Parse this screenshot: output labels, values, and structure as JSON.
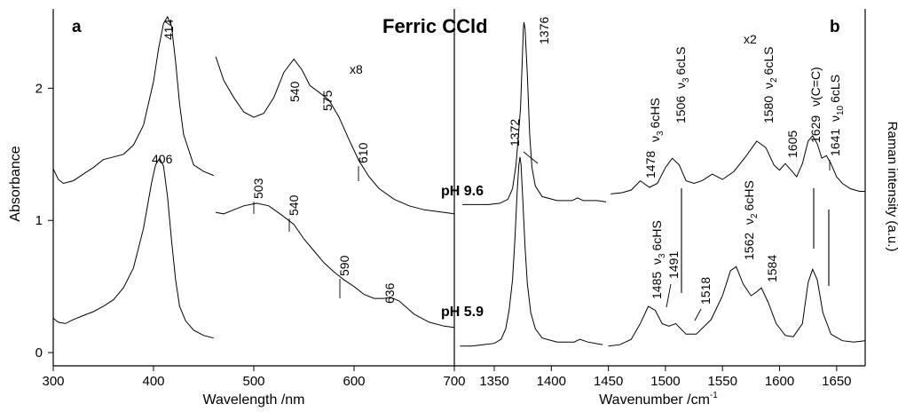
{
  "figure_title": "Ferric CCld",
  "chart_data": [
    {
      "panel": "a",
      "type": "line",
      "xlabel": "Wavelength /nm",
      "ylabel": "Absorbance",
      "xlim": [
        300,
        700
      ],
      "ylim": [
        -0.1,
        2.6
      ],
      "xticks": [
        300,
        400,
        500,
        600,
        700
      ],
      "yticks": [
        0,
        1,
        2
      ],
      "zoom_label": "x8",
      "series": [
        {
          "label": "pH 9.6",
          "points": [
            [
              300,
              1.39
            ],
            [
              305,
              1.31
            ],
            [
              310,
              1.28
            ],
            [
              320,
              1.3
            ],
            [
              330,
              1.35
            ],
            [
              340,
              1.4
            ],
            [
              350,
              1.46
            ],
            [
              360,
              1.48
            ],
            [
              370,
              1.5
            ],
            [
              380,
              1.57
            ],
            [
              390,
              1.72
            ],
            [
              400,
              2.05
            ],
            [
              405,
              2.3
            ],
            [
              410,
              2.49
            ],
            [
              414,
              2.54
            ],
            [
              418,
              2.47
            ],
            [
              422,
              2.2
            ],
            [
              426,
              1.88
            ],
            [
              430,
              1.65
            ],
            [
              440,
              1.42
            ],
            [
              450,
              1.37
            ],
            [
              460,
              1.34
            ]
          ],
          "zoom_points": [
            [
              462,
              2.24
            ],
            [
              470,
              2.06
            ],
            [
              480,
              1.93
            ],
            [
              490,
              1.82
            ],
            [
              500,
              1.78
            ],
            [
              510,
              1.81
            ],
            [
              520,
              1.93
            ],
            [
              530,
              2.12
            ],
            [
              540,
              2.22
            ],
            [
              548,
              2.14
            ],
            [
              556,
              2.02
            ],
            [
              565,
              1.97
            ],
            [
              575,
              1.91
            ],
            [
              585,
              1.78
            ],
            [
              595,
              1.61
            ],
            [
              605,
              1.45
            ],
            [
              615,
              1.33
            ],
            [
              625,
              1.24
            ],
            [
              640,
              1.16
            ],
            [
              655,
              1.11
            ],
            [
              670,
              1.08
            ],
            [
              690,
              1.06
            ],
            [
              700,
              1.05
            ]
          ],
          "peaks": [
            "414",
            "540",
            "575",
            "610"
          ]
        },
        {
          "label": "pH 5.9",
          "points": [
            [
              300,
              0.26
            ],
            [
              305,
              0.23
            ],
            [
              312,
              0.22
            ],
            [
              320,
              0.25
            ],
            [
              330,
              0.28
            ],
            [
              340,
              0.31
            ],
            [
              350,
              0.35
            ],
            [
              360,
              0.4
            ],
            [
              370,
              0.49
            ],
            [
              380,
              0.64
            ],
            [
              390,
              0.94
            ],
            [
              398,
              1.28
            ],
            [
              402,
              1.42
            ],
            [
              406,
              1.47
            ],
            [
              410,
              1.41
            ],
            [
              414,
              1.18
            ],
            [
              418,
              0.85
            ],
            [
              422,
              0.55
            ],
            [
              426,
              0.35
            ],
            [
              432,
              0.24
            ],
            [
              440,
              0.17
            ],
            [
              450,
              0.13
            ],
            [
              460,
              0.11
            ]
          ],
          "zoom_points": [
            [
              462,
              1.06
            ],
            [
              470,
              1.05
            ],
            [
              480,
              1.08
            ],
            [
              490,
              1.11
            ],
            [
              503,
              1.13
            ],
            [
              515,
              1.11
            ],
            [
              528,
              1.04
            ],
            [
              540,
              0.97
            ],
            [
              550,
              0.86
            ],
            [
              560,
              0.77
            ],
            [
              570,
              0.68
            ],
            [
              580,
              0.61
            ],
            [
              590,
              0.55
            ],
            [
              600,
              0.5
            ],
            [
              610,
              0.44
            ],
            [
              620,
              0.41
            ],
            [
              630,
              0.41
            ],
            [
              636,
              0.42
            ],
            [
              645,
              0.39
            ],
            [
              660,
              0.29
            ],
            [
              675,
              0.23
            ],
            [
              690,
              0.2
            ],
            [
              700,
              0.19
            ]
          ],
          "peaks": [
            "406",
            "503",
            "540",
            "590",
            "636"
          ]
        }
      ]
    },
    {
      "panel": "b",
      "type": "line",
      "xlabel": "Wavenumber /cm",
      "xlabel_superscript": "-1",
      "ylabel": "Raman intensity (a.u.)",
      "xlim": [
        1315,
        1675
      ],
      "ylim": [
        -0.1,
        2.6
      ],
      "xticks": [
        1350,
        1400,
        1450,
        1500,
        1550,
        1600,
        1650
      ],
      "zoom_label": "x2",
      "series": [
        {
          "label": "pH 9.6",
          "points": [
            [
              1322,
              1.12
            ],
            [
              1335,
              1.12
            ],
            [
              1345,
              1.12
            ],
            [
              1355,
              1.13
            ],
            [
              1362,
              1.16
            ],
            [
              1366,
              1.24
            ],
            [
              1369,
              1.42
            ],
            [
              1371,
              1.62
            ],
            [
              1373,
              1.85
            ],
            [
              1374.5,
              2.2
            ],
            [
              1375.5,
              2.45
            ],
            [
              1376,
              2.5
            ],
            [
              1377,
              2.45
            ],
            [
              1379,
              2.1
            ],
            [
              1381,
              1.65
            ],
            [
              1383,
              1.4
            ],
            [
              1386,
              1.26
            ],
            [
              1392,
              1.18
            ],
            [
              1405,
              1.15
            ],
            [
              1418,
              1.15
            ],
            [
              1423,
              1.17
            ],
            [
              1428,
              1.15
            ],
            [
              1440,
              1.15
            ],
            [
              1448,
              1.14
            ]
          ],
          "zoom_points": [
            [
              1452,
              1.2
            ],
            [
              1462,
              1.21
            ],
            [
              1470,
              1.23
            ],
            [
              1478,
              1.3
            ],
            [
              1486,
              1.25
            ],
            [
              1493,
              1.28
            ],
            [
              1500,
              1.4
            ],
            [
              1506,
              1.47
            ],
            [
              1512,
              1.42
            ],
            [
              1518,
              1.3
            ],
            [
              1525,
              1.28
            ],
            [
              1532,
              1.3
            ],
            [
              1541,
              1.35
            ],
            [
              1550,
              1.31
            ],
            [
              1560,
              1.37
            ],
            [
              1570,
              1.48
            ],
            [
              1580,
              1.6
            ],
            [
              1588,
              1.55
            ],
            [
              1595,
              1.42
            ],
            [
              1600,
              1.38
            ],
            [
              1605,
              1.43
            ],
            [
              1610,
              1.38
            ],
            [
              1615,
              1.33
            ],
            [
              1620,
              1.43
            ],
            [
              1625,
              1.6
            ],
            [
              1629,
              1.64
            ],
            [
              1633,
              1.58
            ],
            [
              1637,
              1.47
            ],
            [
              1641,
              1.49
            ],
            [
              1645,
              1.43
            ],
            [
              1650,
              1.33
            ],
            [
              1655,
              1.28
            ],
            [
              1662,
              1.24
            ],
            [
              1670,
              1.22
            ],
            [
              1675,
              1.22
            ]
          ],
          "peaks": [
            "1376",
            "1478",
            "1506",
            "1580",
            "1605",
            "1629",
            "1641"
          ]
        },
        {
          "label": "pH 5.9",
          "points": [
            [
              1320,
              0.05
            ],
            [
              1330,
              0.05
            ],
            [
              1340,
              0.06
            ],
            [
              1350,
              0.07
            ],
            [
              1356,
              0.1
            ],
            [
              1360,
              0.18
            ],
            [
              1363,
              0.32
            ],
            [
              1366,
              0.55
            ],
            [
              1368,
              0.85
            ],
            [
              1370,
              1.2
            ],
            [
              1371.5,
              1.42
            ],
            [
              1372.5,
              1.48
            ],
            [
              1373.5,
              1.42
            ],
            [
              1375,
              1.15
            ],
            [
              1377,
              0.8
            ],
            [
              1379,
              0.52
            ],
            [
              1382,
              0.3
            ],
            [
              1386,
              0.18
            ],
            [
              1392,
              0.11
            ],
            [
              1405,
              0.08
            ],
            [
              1420,
              0.08
            ],
            [
              1425,
              0.1
            ],
            [
              1432,
              0.08
            ],
            [
              1445,
              0.06
            ]
          ],
          "zoom_points": [
            [
              1450,
              0.05
            ],
            [
              1460,
              0.06
            ],
            [
              1470,
              0.1
            ],
            [
              1478,
              0.22
            ],
            [
              1485,
              0.35
            ],
            [
              1491,
              0.32
            ],
            [
              1497,
              0.22
            ],
            [
              1503,
              0.2
            ],
            [
              1509,
              0.22
            ],
            [
              1518,
              0.14
            ],
            [
              1527,
              0.14
            ],
            [
              1540,
              0.25
            ],
            [
              1550,
              0.43
            ],
            [
              1557,
              0.62
            ],
            [
              1562,
              0.65
            ],
            [
              1568,
              0.52
            ],
            [
              1575,
              0.43
            ],
            [
              1580,
              0.46
            ],
            [
              1584,
              0.49
            ],
            [
              1590,
              0.38
            ],
            [
              1597,
              0.22
            ],
            [
              1605,
              0.13
            ],
            [
              1612,
              0.12
            ],
            [
              1620,
              0.22
            ],
            [
              1625,
              0.53
            ],
            [
              1629,
              0.63
            ],
            [
              1633,
              0.55
            ],
            [
              1638,
              0.3
            ],
            [
              1645,
              0.14
            ],
            [
              1655,
              0.09
            ],
            [
              1665,
              0.08
            ],
            [
              1675,
              0.09
            ]
          ],
          "peaks": [
            "1372",
            "1485",
            "1491",
            "1518",
            "1562",
            "1584"
          ]
        }
      ],
      "band_labels": {
        "v3_6cHS_top": "6cHS",
        "v3_6cLS_top": "6cLS",
        "v2_6cLS_top": "6cLS",
        "vCC_top": "(C=C)",
        "v10_6cLS_top": "6cLS",
        "v3_6cHS_bottom": "6cHS",
        "v2_6cHS_bottom": "6cHS",
        "nu": "ν",
        "sub3": "3",
        "sub2": "2",
        "sub10": "10"
      }
    }
  ]
}
